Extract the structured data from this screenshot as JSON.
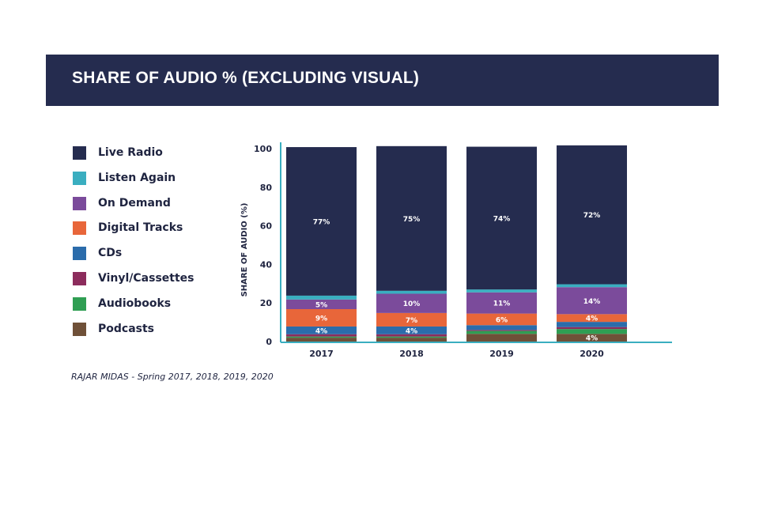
{
  "header": {
    "title": "SHARE OF AUDIO % (EXCLUDING VISUAL)"
  },
  "source": "RAJAR MIDAS - Spring 2017, 2018, 2019, 2020",
  "chart_data": {
    "type": "bar",
    "stacked": true,
    "title": "SHARE OF AUDIO % (EXCLUDING VISUAL)",
    "xlabel": "",
    "ylabel": "SHARE OF AUDIO (%)",
    "ylim": [
      0,
      100
    ],
    "yticks": [
      0,
      20,
      40,
      60,
      80,
      100
    ],
    "categories": [
      "2017",
      "2018",
      "2019",
      "2020"
    ],
    "legend_position": "left",
    "series": [
      {
        "name": "Podcasts",
        "color": "#6f5038",
        "values": [
          2,
          2,
          4,
          4
        ],
        "labels": [
          "",
          "",
          "",
          "4%"
        ]
      },
      {
        "name": "Audiobooks",
        "color": "#2f9e53",
        "values": [
          0.6,
          0.6,
          1.5,
          2.5
        ],
        "labels": [
          "",
          "",
          "",
          ""
        ]
      },
      {
        "name": "Vinyl/Cassettes",
        "color": "#8c2c5c",
        "values": [
          1.2,
          1.2,
          0.5,
          1
        ],
        "labels": [
          "",
          "",
          "",
          ""
        ]
      },
      {
        "name": "CDs",
        "color": "#2b6cab",
        "values": [
          4,
          4,
          2.5,
          2.7
        ],
        "labels": [
          "4%",
          "4%",
          "",
          ""
        ]
      },
      {
        "name": "Digital Tracks",
        "color": "#e8663a",
        "values": [
          9,
          7,
          6,
          4
        ],
        "labels": [
          "9%",
          "7%",
          "6%",
          "4%"
        ]
      },
      {
        "name": "On Demand",
        "color": "#7b4b9b",
        "values": [
          5,
          10,
          11,
          14
        ],
        "labels": [
          "5%",
          "10%",
          "11%",
          "14%"
        ]
      },
      {
        "name": "Listen Again",
        "color": "#3aaec0",
        "values": [
          2,
          1.5,
          1.5,
          1.5
        ],
        "labels": [
          "",
          "",
          "",
          ""
        ]
      },
      {
        "name": "Live Radio",
        "color": "#252c4f",
        "values": [
          77,
          75,
          74,
          72
        ],
        "labels": [
          "77%",
          "75%",
          "74%",
          "72%"
        ]
      }
    ]
  },
  "legend": [
    {
      "label": "Live Radio",
      "color": "#252c4f"
    },
    {
      "label": "Listen Again",
      "color": "#3aaec0"
    },
    {
      "label": "On Demand",
      "color": "#7b4b9b"
    },
    {
      "label": "Digital Tracks",
      "color": "#e8663a"
    },
    {
      "label": "CDs",
      "color": "#2b6cab"
    },
    {
      "label": "Vinyl/Cassettes",
      "color": "#8c2c5c"
    },
    {
      "label": "Audiobooks",
      "color": "#2f9e53"
    },
    {
      "label": "Podcasts",
      "color": "#6f5038"
    }
  ]
}
